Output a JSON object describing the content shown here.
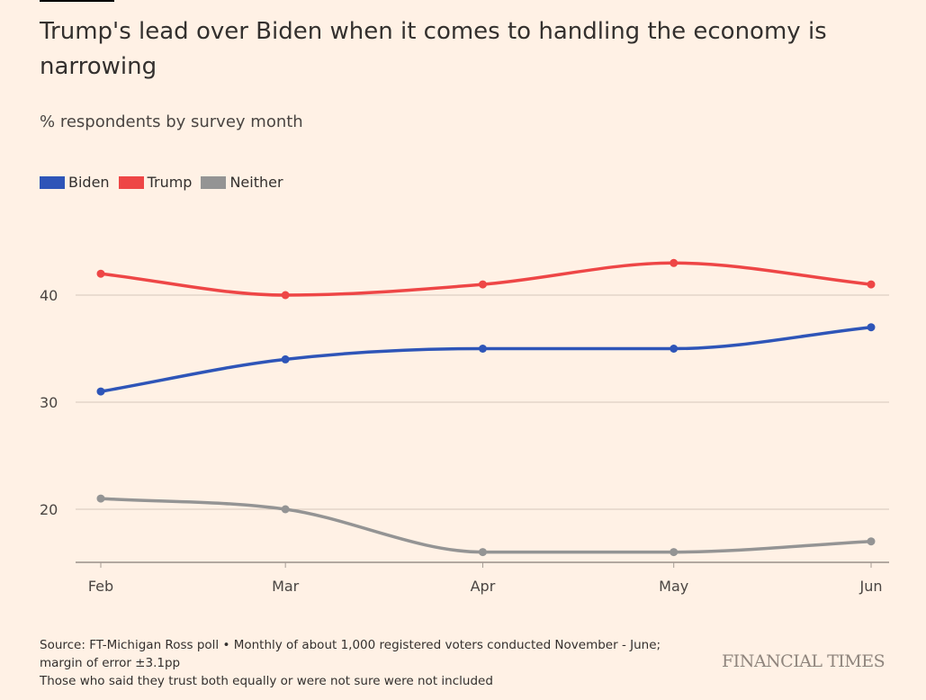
{
  "title": "Trump's lead over Biden when it comes to handling the economy is narrowing",
  "subtitle": "% respondents by survey month",
  "chart_data": {
    "type": "line",
    "x": [
      "Feb",
      "Mar",
      "Apr",
      "May",
      "Jun"
    ],
    "x_dates": [
      "2024-02-01",
      "2024-03-01",
      "2024-04-01",
      "2024-05-01",
      "2024-06-01"
    ],
    "series": [
      {
        "name": "Biden",
        "color": "#2e55b8",
        "values": [
          31,
          34,
          35,
          35,
          37
        ]
      },
      {
        "name": "Trump",
        "color": "#ee4646",
        "values": [
          42,
          40,
          41,
          43,
          41
        ]
      },
      {
        "name": "Neither",
        "color": "#949494",
        "values": [
          21,
          20,
          16,
          16,
          17
        ]
      }
    ],
    "yticks": [
      20,
      30,
      40
    ],
    "ylim": [
      15,
      47
    ],
    "grid": true,
    "legend": "top-left",
    "curve": "smooth"
  },
  "footer": {
    "source": "Source: FT-Michigan Ross poll • Monthly of about 1,000 registered voters conducted November - June; margin of error ±3.1pp",
    "note": "Those who said they trust both equally or were not sure were not included",
    "brand": "FINANCIAL TIMES"
  }
}
